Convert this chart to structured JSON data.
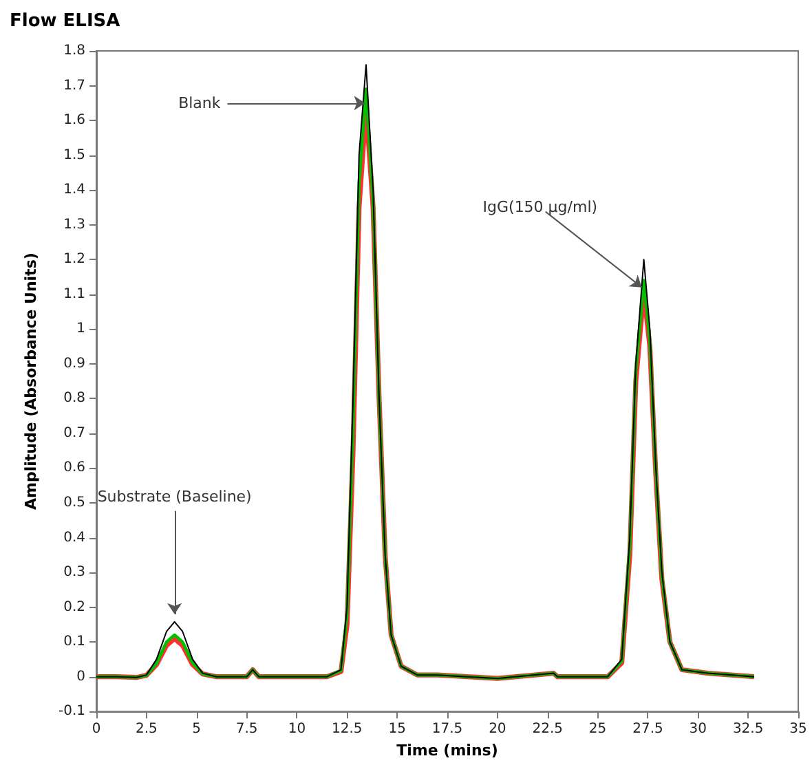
{
  "chart_data": {
    "type": "line",
    "title": "Flow ELISA",
    "xlabel": "Time (mins)",
    "ylabel": "Amplitude (Absorbance Units)",
    "x": [
      0,
      1,
      2,
      2.5,
      3,
      3.5,
      3.9,
      4.3,
      4.8,
      5.3,
      6,
      7.5,
      7.8,
      8.1,
      10,
      11.5,
      12.2,
      12.5,
      12.8,
      13.1,
      13.45,
      13.8,
      14.1,
      14.4,
      14.7,
      15.2,
      16,
      17,
      20,
      22.8,
      23,
      25.5,
      26.2,
      26.6,
      26.9,
      27.3,
      27.6,
      27.9,
      28.2,
      28.6,
      29.2,
      30.5,
      32.8
    ],
    "series": [
      {
        "color": "#ff3030",
        "values": [
          0,
          0,
          -0.002,
          0.004,
          0.035,
          0.09,
          0.11,
          0.09,
          0.035,
          0.008,
          0,
          0,
          0.02,
          0,
          0,
          0,
          0.015,
          0.15,
          0.65,
          1.35,
          1.64,
          1.35,
          0.8,
          0.35,
          0.12,
          0.03,
          0.005,
          0.005,
          -0.005,
          0.01,
          0,
          0,
          0.04,
          0.35,
          0.85,
          1.11,
          0.95,
          0.58,
          0.28,
          0.1,
          0.02,
          0.01,
          0
        ]
      },
      {
        "color": "#00c000",
        "values": [
          0,
          0,
          -0.002,
          0.004,
          0.038,
          0.1,
          0.12,
          0.1,
          0.04,
          0.008,
          0,
          0,
          0.02,
          0,
          0,
          0,
          0.018,
          0.18,
          0.72,
          1.42,
          1.69,
          1.37,
          0.8,
          0.35,
          0.12,
          0.03,
          0.005,
          0.005,
          -0.005,
          0.01,
          0,
          0,
          0.045,
          0.38,
          0.88,
          1.14,
          0.97,
          0.59,
          0.29,
          0.1,
          0.02,
          0.01,
          0
        ]
      },
      {
        "color": "#000000",
        "values": [
          0,
          0,
          -0.002,
          0.005,
          0.05,
          0.13,
          0.158,
          0.13,
          0.05,
          0.01,
          0,
          0,
          0.02,
          0,
          0,
          0,
          0.02,
          0.2,
          0.8,
          1.5,
          1.76,
          1.4,
          0.8,
          0.35,
          0.12,
          0.03,
          0.005,
          0.005,
          -0.005,
          0.01,
          0,
          0,
          0.05,
          0.4,
          0.9,
          1.2,
          1.0,
          0.6,
          0.3,
          0.1,
          0.02,
          0.01,
          0
        ]
      }
    ],
    "xlim": [
      0,
      35
    ],
    "xticks": [
      0,
      2.5,
      5,
      7.5,
      10,
      12.5,
      15,
      17.5,
      20,
      22.5,
      25,
      27.5,
      30,
      32.5,
      35
    ],
    "ylim": [
      -0.1,
      1.8
    ],
    "yticks": [
      -0.1,
      0,
      0.1,
      0.2,
      0.3,
      0.4,
      0.5,
      0.6,
      0.7,
      0.8,
      0.9,
      1,
      1.1,
      1.2,
      1.3,
      1.4,
      1.5,
      1.6,
      1.7,
      1.8
    ],
    "grid": false,
    "marker": "none",
    "line_style": "solid",
    "annotations": [
      {
        "text": "Blank",
        "x": 13.4,
        "y": 1.65
      },
      {
        "text": "IgG(150 µg/ml)",
        "x": 27.2,
        "y": 1.12
      },
      {
        "text": "Substrate (Baseline)",
        "x": 3.9,
        "y": 0.18
      }
    ]
  }
}
